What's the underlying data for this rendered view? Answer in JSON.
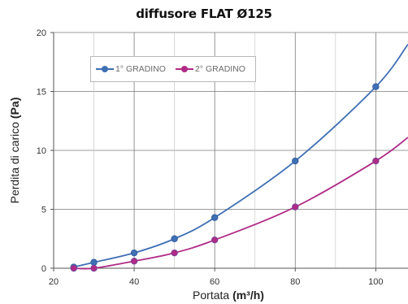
{
  "chart_data": {
    "type": "line",
    "title": "diffusore FLAT Ø125",
    "xlabel_text": "Portata ",
    "xlabel_unit": "(m³/h)",
    "ylabel_text": "Perdita di carico ",
    "ylabel_unit": "(Pa)",
    "xlim": [
      20,
      108
    ],
    "ylim": [
      0,
      20
    ],
    "xticks": [
      20,
      40,
      60,
      80,
      100
    ],
    "yticks": [
      0,
      5,
      10,
      15,
      20
    ],
    "grid": "vertical and horizontal major gridlines",
    "legend_position": "top-left, inside plot",
    "series": [
      {
        "name": "1° GRADINO",
        "color": "#3f6fb4",
        "x": [
          25,
          30,
          40,
          50,
          60,
          80,
          100
        ],
        "y": [
          0.1,
          0.5,
          1.3,
          2.5,
          4.3,
          9.1,
          15.4
        ],
        "curve_end": 19.0
      },
      {
        "name": "2° GRADINO",
        "color": "#b02a86",
        "x": [
          25,
          30,
          40,
          50,
          60,
          80,
          100
        ],
        "y": [
          0.0,
          0.0,
          0.6,
          1.3,
          2.4,
          5.2,
          9.1
        ],
        "curve_end": 11.1
      }
    ]
  }
}
